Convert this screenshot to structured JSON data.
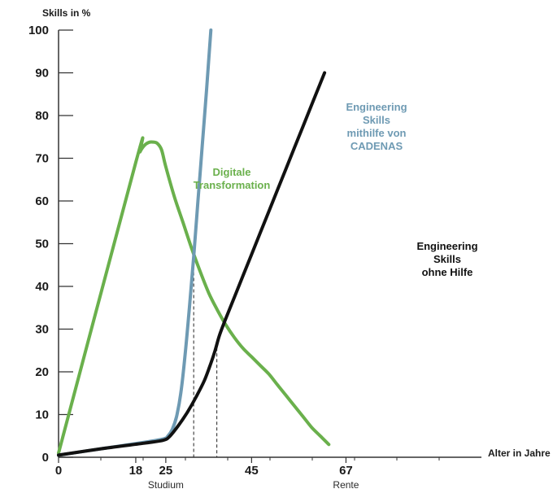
{
  "chart_data": {
    "type": "line",
    "ylabel": "Skills in %",
    "xlabel": "Alter in Jahre",
    "ylim": [
      0,
      100
    ],
    "yticks": [
      0,
      10,
      20,
      30,
      40,
      50,
      60,
      70,
      80,
      90,
      100
    ],
    "xticks": [
      {
        "value": 0,
        "label": "0",
        "sublabel": ""
      },
      {
        "value": 18,
        "label": "18",
        "sublabel": ""
      },
      {
        "value": 25,
        "label": "25",
        "sublabel": "Studium"
      },
      {
        "value": 45,
        "label": "45",
        "sublabel": ""
      },
      {
        "value": 67,
        "label": "67",
        "sublabel": "Rente"
      }
    ],
    "grid": false,
    "legend": "none",
    "series": [
      {
        "name": "Digitale Transformation",
        "name_lines": [
          "Digitale",
          "Transformation"
        ],
        "color": "#6ab04c",
        "points": [
          [
            0,
            1
          ],
          [
            18,
            69
          ],
          [
            19,
            71.5
          ],
          [
            20,
            73
          ],
          [
            21,
            73.7
          ],
          [
            22,
            73.8
          ],
          [
            23,
            73.5
          ],
          [
            24,
            72
          ],
          [
            25,
            68
          ],
          [
            27,
            61
          ],
          [
            29,
            55
          ],
          [
            31,
            49
          ],
          [
            33,
            43.5
          ],
          [
            35,
            38.5
          ],
          [
            37,
            34.5
          ],
          [
            39,
            31
          ],
          [
            41,
            28
          ],
          [
            43,
            25.5
          ],
          [
            45,
            23.5
          ],
          [
            47,
            21.5
          ],
          [
            49,
            19.5
          ],
          [
            51,
            17
          ],
          [
            53,
            14.5
          ],
          [
            55,
            12
          ],
          [
            57,
            9.5
          ],
          [
            59,
            7
          ],
          [
            61,
            5
          ],
          [
            63,
            3
          ]
        ]
      },
      {
        "name": "Engineering Skills mithilfe von CADENAS",
        "name_lines": [
          "Engineering",
          "Skills",
          "mithilfe von",
          "CADENAS"
        ],
        "color": "#6e9ab3",
        "points": [
          [
            0,
            0.5
          ],
          [
            10,
            2
          ],
          [
            20,
            3.5
          ],
          [
            24.5,
            4.3
          ],
          [
            25.5,
            5
          ],
          [
            26.5,
            6.5
          ],
          [
            27.5,
            9.5
          ],
          [
            28.5,
            15
          ],
          [
            29.5,
            24
          ],
          [
            30.5,
            35
          ],
          [
            31.5,
            47
          ],
          [
            32.5,
            60
          ],
          [
            33.5,
            73
          ],
          [
            34.5,
            86
          ],
          [
            35.5,
            100
          ]
        ]
      },
      {
        "name": "Engineering Skills ohne Hilfe",
        "name_lines": [
          "Engineering",
          "Skills",
          "ohne Hilfe"
        ],
        "color": "#111111",
        "points": [
          [
            0,
            0.5
          ],
          [
            10,
            2
          ],
          [
            20,
            3.3
          ],
          [
            24.5,
            4
          ],
          [
            26,
            5
          ],
          [
            28,
            7.5
          ],
          [
            30,
            10.5
          ],
          [
            32,
            14
          ],
          [
            34,
            18
          ],
          [
            35.5,
            22
          ],
          [
            36.5,
            25
          ],
          [
            37.5,
            28.5
          ],
          [
            39,
            32.5
          ],
          [
            41,
            37.5
          ],
          [
            43,
            42.5
          ],
          [
            45,
            47.5
          ],
          [
            47,
            52.5
          ],
          [
            49,
            57.5
          ],
          [
            51,
            62.5
          ],
          [
            53,
            67.5
          ],
          [
            55,
            72.5
          ],
          [
            57,
            77.5
          ],
          [
            59,
            82.5
          ],
          [
            61,
            87.5
          ],
          [
            62,
            90
          ]
        ]
      }
    ],
    "reference_lines": [
      {
        "x": 31.5,
        "y": 46
      },
      {
        "x": 36.9,
        "y": 27
      }
    ]
  }
}
